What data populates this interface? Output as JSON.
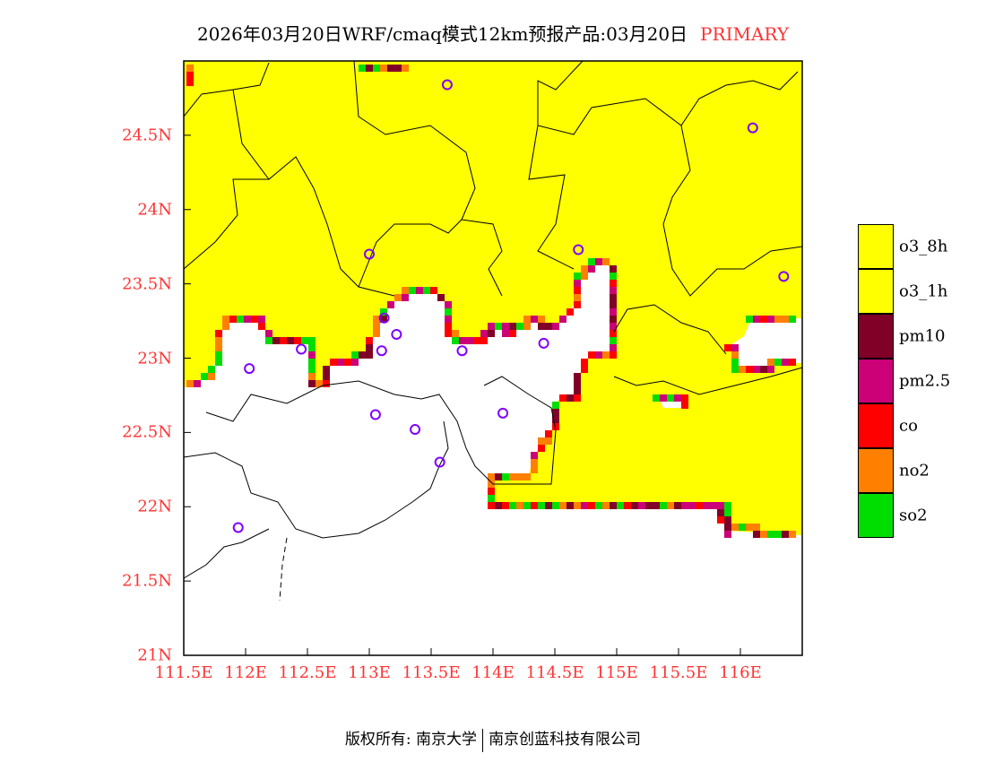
{
  "title": {
    "main": "2026年03月20日WRF/cmaq模式12km预报产品:03月20日",
    "tag": "PRIMARY"
  },
  "axes": {
    "lat_labels": [
      "21N",
      "21.5N",
      "22N",
      "22.5N",
      "23N",
      "23.5N",
      "24N",
      "24.5N"
    ],
    "lat_values": [
      21,
      21.5,
      22,
      22.5,
      23,
      23.5,
      24,
      24.5
    ],
    "lon_labels": [
      "111.5E",
      "112E",
      "112.5E",
      "113E",
      "113.5E",
      "114E",
      "114.5E",
      "115E",
      "115.5E",
      "116E"
    ],
    "lon_values": [
      111.5,
      112,
      112.5,
      113,
      113.5,
      114,
      114.5,
      115,
      115.5,
      116
    ],
    "lat_range": [
      21,
      25
    ],
    "lon_range": [
      111.5,
      116.5
    ]
  },
  "legend": [
    {
      "label": "o3_8h",
      "color": "#ffff00"
    },
    {
      "label": "o3_1h",
      "color": "#ffff00"
    },
    {
      "label": "pm10",
      "color": "#800028"
    },
    {
      "label": "pm2.5",
      "color": "#cc0077"
    },
    {
      "label": "co",
      "color": "#ff0000"
    },
    {
      "label": "no2",
      "color": "#ff8000"
    },
    {
      "label": "so2",
      "color": "#00dd00"
    }
  ],
  "stations": [
    [
      113.63,
      24.84
    ],
    [
      116.1,
      24.55
    ],
    [
      113.0,
      23.7
    ],
    [
      114.69,
      23.73
    ],
    [
      116.35,
      23.55
    ],
    [
      113.12,
      23.27
    ],
    [
      113.22,
      23.16
    ],
    [
      112.45,
      23.06
    ],
    [
      112.03,
      22.93
    ],
    [
      113.1,
      23.05
    ],
    [
      113.75,
      23.05
    ],
    [
      114.41,
      23.1
    ],
    [
      113.05,
      22.62
    ],
    [
      113.37,
      22.52
    ],
    [
      114.08,
      22.63
    ],
    [
      113.57,
      22.3
    ],
    [
      111.94,
      21.86
    ]
  ],
  "footer": {
    "left": "版权所有: 南京大学",
    "right": "南京创蓝科技有限公司"
  }
}
